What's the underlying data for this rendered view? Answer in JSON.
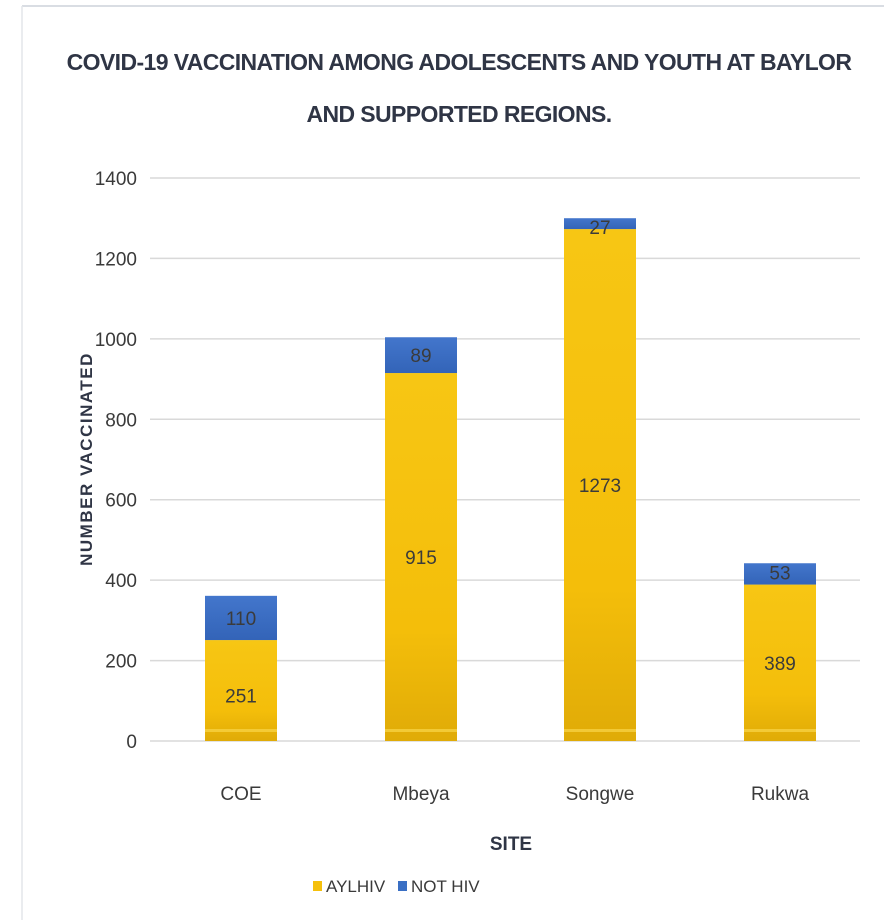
{
  "chart_data": {
    "type": "bar",
    "stacked": true,
    "title": "COVID-19 VACCINATION AMONG ADOLESCENTS AND YOUTH AT BAYLOR AND SUPPORTED REGIONS.",
    "title_lines": [
      "COVID-19 VACCINATION AMONG ADOLESCENTS AND YOUTH AT BAYLOR",
      "AND SUPPORTED REGIONS."
    ],
    "xlabel": "SITE",
    "ylabel": "NUMBER VACCINATED",
    "ylim": [
      0,
      1400
    ],
    "yticks": [
      0,
      200,
      400,
      600,
      800,
      1000,
      1200,
      1400
    ],
    "grid": true,
    "legend_position": "bottom",
    "categories": [
      "COE",
      "Mbeya",
      "Songwe",
      "Rukwa"
    ],
    "series": [
      {
        "name": "AYLHIV",
        "values": [
          251,
          915,
          1273,
          389
        ],
        "color": "#f5c00c"
      },
      {
        "name": "NOT HIV",
        "values": [
          110,
          89,
          27,
          53
        ],
        "color": "#3a6fc4"
      }
    ]
  }
}
